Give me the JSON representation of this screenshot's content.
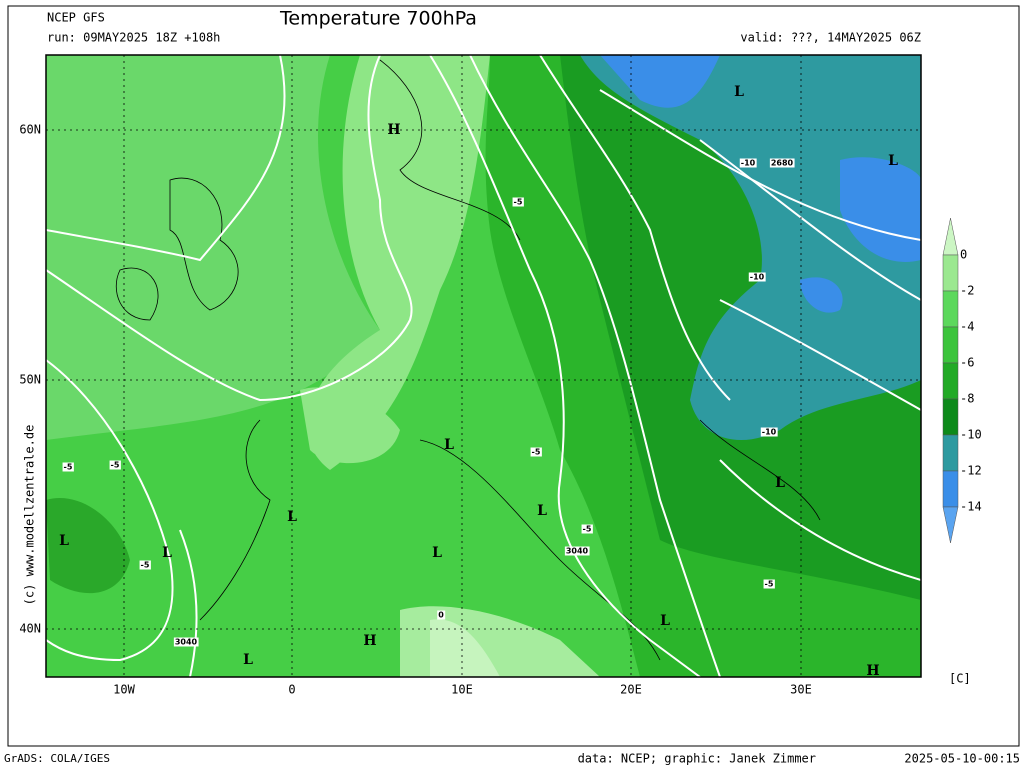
{
  "header": {
    "model": "NCEP GFS",
    "title": "Temperature 700hPa",
    "run": "run: 09MAY2025 18Z +108h",
    "valid": "valid: ???, 14MAY2025 06Z"
  },
  "map": {
    "lon_labels": [
      "10W",
      "0",
      "10E",
      "20E",
      "30E"
    ],
    "lat_labels": [
      "60N",
      "50N",
      "40N"
    ],
    "contour_labels": [
      "-5",
      "-10",
      "2680",
      "-10",
      "-10",
      "-5",
      "-5",
      "-5",
      "-5",
      "3040",
      "-5",
      "3040",
      "-5",
      "0"
    ],
    "pressure_centers": [
      "L",
      "H",
      "L",
      "L",
      "L",
      "L",
      "L",
      "L",
      "L",
      "L",
      "H",
      "L",
      "L",
      "H"
    ],
    "copyright": "(c) www.modellzentrale.de"
  },
  "colorbar": {
    "labels": [
      "0",
      "-2",
      "-4",
      "-6",
      "-8",
      "-10",
      "-12",
      "-14"
    ],
    "unit": "[C]"
  },
  "footer": {
    "left": "GrADS: COLA/IGES",
    "data": "data: NCEP; graphic: Janek Zimmer",
    "date": "2025-05-10-00:15"
  }
}
